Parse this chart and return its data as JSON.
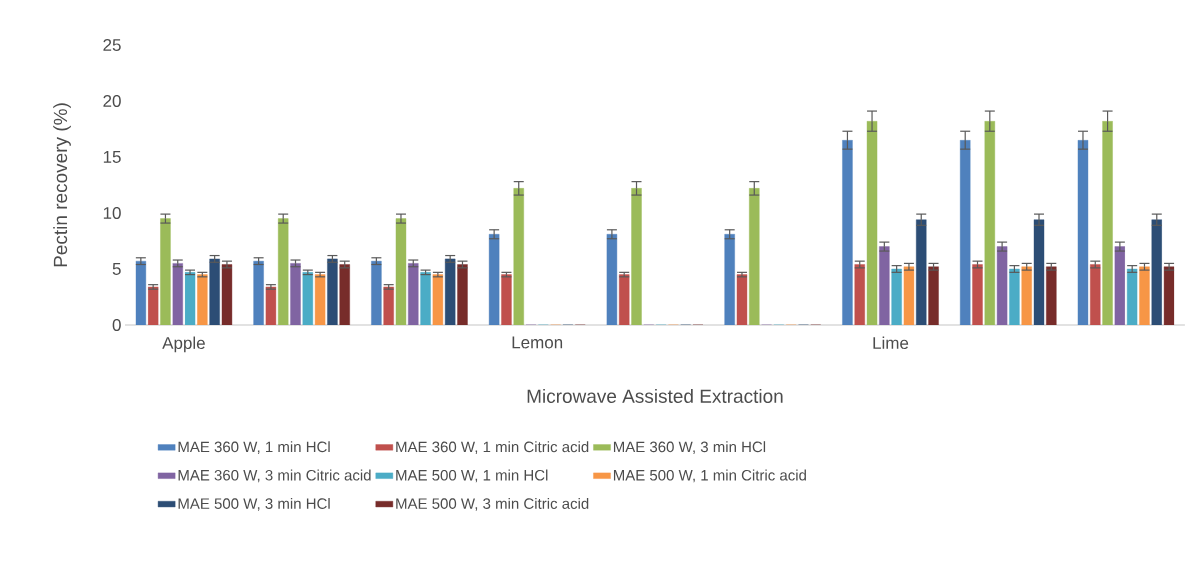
{
  "chart_data": {
    "type": "bar",
    "xlabel": "Microwave Assisted Extraction",
    "ylabel": "Pectin recovery (%)",
    "categories": [
      "Apple",
      null,
      null,
      "Lemon",
      null,
      null,
      "Lime",
      null,
      null
    ],
    "ylim": [
      0,
      25
    ],
    "yticks": [
      0,
      5,
      10,
      15,
      20,
      25
    ],
    "grid": false,
    "legend": "bottom",
    "series": [
      {
        "name": "MAE 360 W, 1 min HCl",
        "color": "#4f81bd",
        "values": [
          5.7,
          5.7,
          5.7,
          8.1,
          8.1,
          8.1,
          16.5,
          16.5,
          16.5
        ],
        "errors": [
          0.3,
          0.3,
          0.3,
          0.4,
          0.4,
          0.4,
          0.8,
          0.8,
          0.8
        ]
      },
      {
        "name": "MAE 360 W, 1 min Citric acid",
        "color": "#c0504d",
        "values": [
          3.4,
          3.4,
          3.4,
          4.5,
          4.5,
          4.5,
          5.4,
          5.4,
          5.4
        ],
        "errors": [
          0.2,
          0.2,
          0.2,
          0.2,
          0.2,
          0.2,
          0.3,
          0.3,
          0.3
        ]
      },
      {
        "name": "MAE 360 W, 3 min HCl",
        "color": "#9bbb59",
        "values": [
          9.5,
          9.5,
          9.5,
          12.2,
          12.2,
          12.2,
          18.2,
          18.2,
          18.2
        ],
        "errors": [
          0.4,
          0.4,
          0.4,
          0.6,
          0.6,
          0.6,
          0.9,
          0.9,
          0.9
        ]
      },
      {
        "name": "MAE 360 W, 3 min Citric acid",
        "color": "#8064a2",
        "values": [
          5.5,
          5.5,
          5.5,
          0,
          0,
          0,
          7.0,
          7.0,
          7.0
        ],
        "errors": [
          0.3,
          0.3,
          0.3,
          null,
          null,
          null,
          0.4,
          0.4,
          0.4
        ]
      },
      {
        "name": "MAE 500 W, 1 min HCl",
        "color": "#4bacc6",
        "values": [
          4.7,
          4.7,
          4.7,
          0,
          0,
          0,
          5.0,
          5.0,
          5.0
        ],
        "errors": [
          0.2,
          0.2,
          0.2,
          null,
          null,
          null,
          0.3,
          0.3,
          0.3
        ]
      },
      {
        "name": "MAE 500 W, 1 min Citric acid",
        "color": "#f79646",
        "values": [
          4.5,
          4.5,
          4.5,
          0,
          0,
          0,
          5.2,
          5.2,
          5.2
        ],
        "errors": [
          0.2,
          0.2,
          0.2,
          null,
          null,
          null,
          0.3,
          0.3,
          0.3
        ]
      },
      {
        "name": "MAE 500 W, 3 min HCl",
        "color": "#2c4d75",
        "values": [
          5.9,
          5.9,
          5.9,
          0,
          0,
          0,
          9.4,
          9.4,
          9.4
        ],
        "errors": [
          0.3,
          0.3,
          0.3,
          null,
          null,
          null,
          0.5,
          0.5,
          0.5
        ]
      },
      {
        "name": "MAE 500 W, 3 min Citric acid",
        "color": "#772c2a",
        "values": [
          5.4,
          5.4,
          5.4,
          0,
          0,
          0,
          5.2,
          5.2,
          5.2
        ],
        "errors": [
          0.3,
          0.3,
          0.3,
          null,
          null,
          null,
          0.3,
          0.3,
          0.3
        ]
      }
    ]
  }
}
